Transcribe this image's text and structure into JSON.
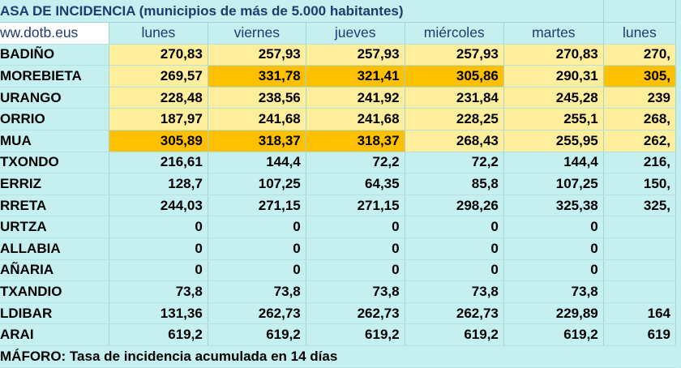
{
  "title": "ASA DE INCIDENCIA  (municipios de más de 5.000 habitantes)",
  "site": "ww.dotb.eus",
  "days": [
    "lunes",
    "viernes",
    "jueves",
    "miércoles",
    "martes",
    "lunes"
  ],
  "rows": [
    {
      "name": "BADIÑO",
      "values": [
        "270,83",
        "257,93",
        "257,93",
        "257,93",
        "270,83",
        "270,"
      ],
      "colors": [
        "y",
        "y",
        "y",
        "y",
        "y",
        "y"
      ]
    },
    {
      "name": "MOREBIETA",
      "values": [
        "269,57",
        "331,78",
        "321,41",
        "305,86",
        "290,31",
        "305,"
      ],
      "colors": [
        "y",
        "o",
        "o",
        "o",
        "y",
        "o"
      ]
    },
    {
      "name": "URANGO",
      "values": [
        "228,48",
        "238,56",
        "241,92",
        "231,84",
        "245,28",
        "239"
      ],
      "colors": [
        "y",
        "y",
        "y",
        "y",
        "y",
        "y"
      ]
    },
    {
      "name": "ORRIO",
      "values": [
        "187,97",
        "241,68",
        "241,68",
        "228,25",
        "255,1",
        "268,"
      ],
      "colors": [
        "y",
        "y",
        "y",
        "y",
        "y",
        "y"
      ]
    },
    {
      "name": "MUA",
      "values": [
        "305,89",
        "318,37",
        "318,37",
        "268,43",
        "255,95",
        "262,"
      ],
      "colors": [
        "o",
        "o",
        "o",
        "y",
        "y",
        "y"
      ]
    },
    {
      "name": "TXONDO",
      "values": [
        "216,61",
        "144,4",
        "72,2",
        "72,2",
        "144,4",
        "216,"
      ],
      "colors": [
        "",
        "",
        "",
        "",
        "",
        ""
      ]
    },
    {
      "name": "ERRIZ",
      "values": [
        "128,7",
        "107,25",
        "64,35",
        "85,8",
        "107,25",
        "150,"
      ],
      "colors": [
        "",
        "",
        "",
        "",
        "",
        ""
      ]
    },
    {
      "name": "RRETA",
      "values": [
        "244,03",
        "271,15",
        "271,15",
        "298,26",
        "325,38",
        "325,"
      ],
      "colors": [
        "",
        "",
        "",
        "",
        "",
        ""
      ]
    },
    {
      "name": "URTZA",
      "values": [
        "0",
        "0",
        "0",
        "0",
        "0",
        ""
      ],
      "colors": [
        "",
        "",
        "",
        "",
        "",
        ""
      ]
    },
    {
      "name": "ALLABIA",
      "values": [
        "0",
        "0",
        "0",
        "0",
        "0",
        ""
      ],
      "colors": [
        "",
        "",
        "",
        "",
        "",
        ""
      ]
    },
    {
      "name": "AÑARIA",
      "values": [
        "0",
        "0",
        "0",
        "0",
        "0",
        ""
      ],
      "colors": [
        "",
        "",
        "",
        "",
        "",
        ""
      ]
    },
    {
      "name": "TXANDIO",
      "values": [
        "73,8",
        "73,8",
        "73,8",
        "73,8",
        "73,8",
        ""
      ],
      "colors": [
        "",
        "",
        "",
        "",
        "",
        ""
      ]
    },
    {
      "name": "LDIBAR",
      "values": [
        "131,36",
        "262,73",
        "262,73",
        "262,73",
        "229,89",
        "164"
      ],
      "colors": [
        "",
        "",
        "",
        "",
        "",
        ""
      ]
    },
    {
      "name": "ARAI",
      "values": [
        "619,2",
        "619,2",
        "619,2",
        "619,2",
        "619,2",
        "619"
      ],
      "colors": [
        "",
        "",
        "",
        "",
        "",
        ""
      ]
    }
  ],
  "footer": "MÁFORO:  Tasa de incidencia acumulada en 14 días",
  "palette": {
    "yellow": "#ffef9c",
    "orange": "#ffc000",
    "background": "#c6efef",
    "header_text": "#1f3b70"
  }
}
